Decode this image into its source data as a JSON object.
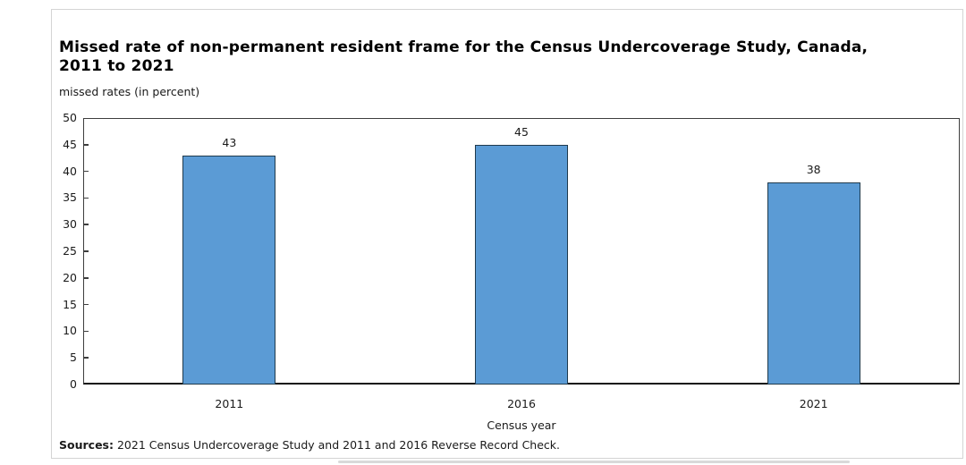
{
  "header": {
    "title_line1": "Missed rate of non-permanent resident frame for the Census Undercoverage Study, Canada,",
    "title_line2": "2011 to 2021"
  },
  "chart_data": {
    "type": "bar",
    "title": "Missed rate of non-permanent resident frame for the Census Undercoverage Study, Canada, 2011 to 2021",
    "categories": [
      "2011",
      "2016",
      "2021"
    ],
    "values": [
      43,
      45,
      38
    ],
    "xlabel": "Census year",
    "ylabel": "missed rates (in percent)",
    "ylim": [
      0,
      50
    ],
    "ytick_step": 5,
    "grid": false,
    "legend": "none",
    "value_labels_shown": true,
    "bar_fill_color": "#5b9bd5",
    "bar_border_color": "#1f3a4d"
  },
  "footer": {
    "sources_label": "Sources:",
    "sources_text": " 2021 Census Undercoverage Study and 2011 and 2016 Reverse Record Check."
  }
}
